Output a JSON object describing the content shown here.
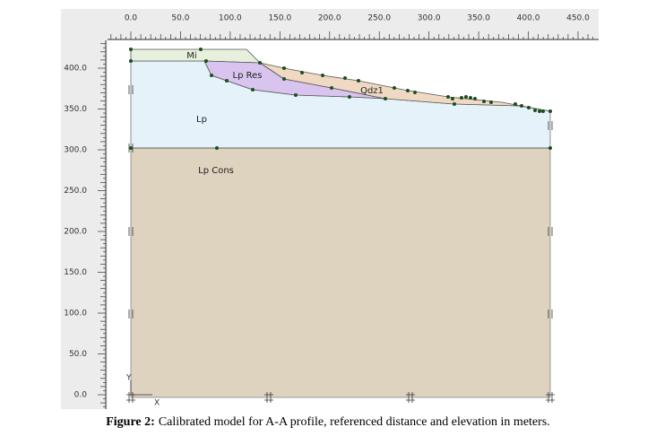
{
  "x_axis": {
    "labels": [
      "0.0",
      "50.0",
      "100.0",
      "150.0",
      "200.0",
      "250.0",
      "300.0",
      "350.0",
      "400.0",
      "450.0"
    ]
  },
  "y_axis": {
    "labels": [
      "400.0",
      "350.0",
      "300.0",
      "250.0",
      "200.0",
      "150.0",
      "100.0",
      "50.0",
      "0.0"
    ]
  },
  "regions": [
    {
      "label": "Mi"
    },
    {
      "label": "Lp Res"
    },
    {
      "label": "Qdz1"
    },
    {
      "label": "Lp"
    },
    {
      "label": "Lp Cons"
    }
  ],
  "axis_indicator": {
    "y": "Y",
    "x": "X"
  },
  "caption": {
    "figure": "Figure 2:",
    "text": "Calibrated model for A-A profile, referenced distance and elevation in meters."
  }
}
